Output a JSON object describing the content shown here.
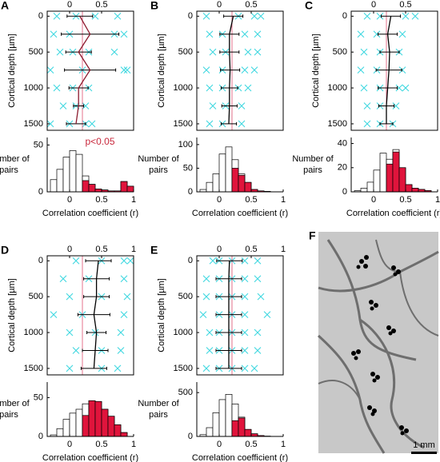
{
  "chart_data": [
    {
      "type": "depth",
      "label": "A",
      "ylabel": "Cortical depth [µm]",
      "xlim": [
        -0.35,
        1
      ],
      "ylim": [
        -70,
        1590
      ],
      "y_inverted": true,
      "xticks": [
        0,
        0.5
      ],
      "yticks": [
        0,
        500,
        1000,
        1500
      ],
      "threshold": 0.2,
      "threshold_color": "#e05070",
      "point_color": "#40d8e0",
      "depths": [
        0,
        250,
        500,
        750,
        1000,
        1250,
        1500
      ],
      "mean": [
        0.16,
        0.32,
        0.14,
        0.32,
        0.14,
        0.14,
        0.1
      ],
      "error": [
        0.2,
        0.45,
        0.2,
        0.4,
        0.15,
        0.08,
        0.15
      ],
      "points": [
        [
          -0.2,
          0
        ],
        [
          0.1,
          0
        ],
        [
          0.4,
          0
        ],
        [
          0.75,
          0
        ],
        [
          -0.25,
          250
        ],
        [
          0,
          250
        ],
        [
          0.7,
          250
        ],
        [
          0.85,
          250
        ],
        [
          -0.15,
          500
        ],
        [
          0.05,
          500
        ],
        [
          0.3,
          500
        ],
        [
          0.7,
          500
        ],
        [
          -0.3,
          750
        ],
        [
          0.2,
          750
        ],
        [
          0.85,
          750
        ],
        [
          0.9,
          750
        ],
        [
          -0.2,
          1000
        ],
        [
          0.05,
          1000
        ],
        [
          0.3,
          1000
        ],
        [
          -0.1,
          1250
        ],
        [
          0.1,
          1250
        ],
        [
          0.25,
          1250
        ],
        [
          -0.3,
          1500
        ],
        [
          0,
          1500
        ],
        [
          0.25,
          1500
        ],
        [
          0.35,
          1500
        ]
      ]
    },
    {
      "type": "histogram",
      "xlabel": "Correlation coefficient (r)",
      "ylabel_lines": [
        "Number of",
        "pairs"
      ],
      "xlim": [
        -0.35,
        1
      ],
      "ylim": [
        0,
        58
      ],
      "xticks": [
        0,
        0.5,
        1
      ],
      "yticks": [
        0,
        50
      ],
      "annotation": "p<0.05",
      "annotation_color": "#c8283c",
      "threshold": 0.2,
      "bins": [
        -0.3,
        -0.2,
        -0.1,
        0,
        0.1,
        0.2,
        0.3,
        0.4,
        0.5,
        0.6,
        0.7,
        0.8,
        0.9,
        1
      ],
      "series": [
        {
          "color": "#ffffff",
          "values": [
            13,
            24,
            37,
            44,
            40,
            17,
            8,
            3,
            2,
            1,
            1,
            11,
            6
          ]
        },
        {
          "color": "#e0143c",
          "values": [
            0,
            0,
            0,
            0,
            0,
            12,
            8,
            3,
            2,
            1,
            1,
            11,
            6
          ]
        }
      ]
    },
    {
      "type": "depth",
      "label": "B",
      "ylabel": "Cortical depth [µm]",
      "xlim": [
        -0.35,
        1
      ],
      "ylim": [
        -70,
        1590
      ],
      "y_inverted": true,
      "xticks": [
        0,
        0.5
      ],
      "yticks": [
        0,
        500,
        1000,
        1500
      ],
      "threshold": 0.2,
      "threshold_color": "#e05070",
      "point_color": "#40d8e0",
      "depths": [
        0,
        250,
        500,
        750,
        1000,
        1250,
        1500
      ],
      "mean": [
        0.22,
        0.16,
        0.16,
        0.17,
        0.16,
        0.16,
        0.15
      ],
      "error": [
        0.15,
        0.15,
        0.15,
        0.15,
        0.13,
        0.12,
        0.12
      ],
      "points": [
        [
          -0.2,
          0
        ],
        [
          0.3,
          0
        ],
        [
          0.55,
          0
        ],
        [
          0.65,
          0
        ],
        [
          -0.15,
          250
        ],
        [
          0.05,
          250
        ],
        [
          0.4,
          250
        ],
        [
          0.6,
          250
        ],
        [
          -0.1,
          500
        ],
        [
          0.1,
          500
        ],
        [
          0.45,
          500
        ],
        [
          0.6,
          500
        ],
        [
          -0.2,
          750
        ],
        [
          0.05,
          750
        ],
        [
          0.4,
          750
        ],
        [
          0.55,
          750
        ],
        [
          -0.15,
          1000
        ],
        [
          0.05,
          1000
        ],
        [
          0.3,
          1000
        ],
        [
          0.45,
          1000
        ],
        [
          -0.1,
          1250
        ],
        [
          0.1,
          1250
        ],
        [
          0.35,
          1250
        ],
        [
          -0.15,
          1500
        ],
        [
          0.05,
          1500
        ],
        [
          0.35,
          1500
        ]
      ]
    },
    {
      "type": "histogram",
      "xlabel": "Correlation coefficient (r)",
      "ylabel_lines": [
        "Number of",
        "pairs"
      ],
      "xlim": [
        -0.35,
        1
      ],
      "ylim": [
        0,
        115
      ],
      "xticks": [
        0,
        0.5,
        1
      ],
      "yticks": [
        0,
        50,
        100
      ],
      "threshold": 0.2,
      "bins": [
        -0.3,
        -0.2,
        -0.1,
        0,
        0.1,
        0.2,
        0.3,
        0.4,
        0.5,
        0.6,
        0.7,
        0.8,
        0.9,
        1
      ],
      "series": [
        {
          "color": "#ffffff",
          "values": [
            5,
            20,
            38,
            80,
            95,
            68,
            38,
            20,
            5,
            2,
            1,
            0,
            0
          ]
        },
        {
          "color": "#e0143c",
          "values": [
            0,
            0,
            0,
            0,
            0,
            50,
            35,
            20,
            5,
            2,
            1,
            0,
            0
          ]
        }
      ]
    },
    {
      "type": "depth",
      "label": "C",
      "ylabel": "Cortical depth [µm]",
      "xlim": [
        -0.35,
        1
      ],
      "ylim": [
        -70,
        1590
      ],
      "y_inverted": true,
      "xticks": [
        0,
        0.5
      ],
      "yticks": [
        0,
        500,
        1000,
        1500
      ],
      "threshold": 0.2,
      "threshold_color": "#e05070",
      "point_color": "#40d8e0",
      "depths": [
        0,
        250,
        500,
        750,
        1000,
        1250,
        1500
      ],
      "mean": [
        0.27,
        0.22,
        0.25,
        0.24,
        0.22,
        0.2,
        0.2
      ],
      "error": [
        0.15,
        0.15,
        0.15,
        0.2,
        0.15,
        0.12,
        0.1
      ],
      "points": [
        [
          -0.1,
          0
        ],
        [
          0.1,
          0
        ],
        [
          0.5,
          0
        ],
        [
          0.65,
          0
        ],
        [
          -0.2,
          250
        ],
        [
          0.05,
          250
        ],
        [
          0.45,
          250
        ],
        [
          -0.15,
          500
        ],
        [
          0.1,
          500
        ],
        [
          0.4,
          500
        ],
        [
          -0.2,
          750
        ],
        [
          0.05,
          750
        ],
        [
          0.45,
          750
        ],
        [
          -0.15,
          1000
        ],
        [
          0.1,
          1000
        ],
        [
          0.4,
          1000
        ],
        [
          0.5,
          1000
        ],
        [
          -0.1,
          1250
        ],
        [
          0.1,
          1250
        ],
        [
          0.35,
          1250
        ],
        [
          -0.1,
          1500
        ],
        [
          0.1,
          1500
        ],
        [
          0.3,
          1500
        ]
      ]
    },
    {
      "type": "histogram",
      "xlabel": "Correlation coefficient (r)",
      "ylabel_lines": [
        "Number of",
        "pairs"
      ],
      "xlim": [
        -0.35,
        1
      ],
      "ylim": [
        0,
        45
      ],
      "xticks": [
        0,
        0.5,
        1
      ],
      "yticks": [
        0,
        20,
        40
      ],
      "threshold": 0.2,
      "bins": [
        -0.3,
        -0.2,
        -0.1,
        0,
        0.1,
        0.2,
        0.3,
        0.4,
        0.5,
        0.6,
        0.7,
        0.8,
        0.9,
        1
      ],
      "series": [
        {
          "color": "#ffffff",
          "values": [
            1,
            3,
            8,
            18,
            32,
            27,
            35,
            20,
            6,
            3,
            2,
            1,
            0
          ]
        },
        {
          "color": "#e0143c",
          "values": [
            0,
            0,
            0,
            0,
            0,
            23,
            33,
            20,
            6,
            3,
            2,
            1,
            0
          ]
        }
      ]
    },
    {
      "type": "depth",
      "label": "D",
      "ylabel": "Cortical depth [µm]",
      "xlim": [
        -0.35,
        1
      ],
      "ylim": [
        -70,
        1590
      ],
      "y_inverted": true,
      "xticks": [
        0,
        0.5,
        1
      ],
      "yticks": [
        0,
        500,
        1000,
        1500
      ],
      "threshold": 0.2,
      "threshold_color": "#e05070",
      "point_color": "#40d8e0",
      "depths": [
        0,
        250,
        500,
        750,
        1000,
        1250,
        1500
      ],
      "mean": [
        0.45,
        0.42,
        0.42,
        0.38,
        0.42,
        0.4,
        0.38
      ],
      "error": [
        0.2,
        0.2,
        0.2,
        0.25,
        0.15,
        0.2,
        0.2
      ],
      "points": [
        [
          0.1,
          0
        ],
        [
          0.5,
          0
        ],
        [
          0.85,
          0
        ],
        [
          0.95,
          0
        ],
        [
          -0.1,
          250
        ],
        [
          0.3,
          250
        ],
        [
          0.85,
          250
        ],
        [
          0,
          500
        ],
        [
          0.5,
          500
        ],
        [
          0.9,
          500
        ],
        [
          -0.25,
          750
        ],
        [
          0.2,
          750
        ],
        [
          0.85,
          750
        ],
        [
          0,
          1000
        ],
        [
          0.4,
          1000
        ],
        [
          0.8,
          1000
        ],
        [
          0.1,
          1250
        ],
        [
          0.5,
          1250
        ],
        [
          0.8,
          1250
        ],
        [
          0,
          1500
        ],
        [
          0.5,
          1500
        ],
        [
          0.75,
          1500
        ]
      ]
    },
    {
      "type": "histogram",
      "xlabel": "Correlation coefficient (r)",
      "ylabel_lines": [
        "Number of",
        "pairs"
      ],
      "xlim": [
        -0.35,
        1
      ],
      "ylim": [
        0,
        70
      ],
      "xticks": [
        0,
        0.5,
        1
      ],
      "yticks": [
        0,
        50
      ],
      "threshold": 0.2,
      "bins": [
        -0.3,
        -0.2,
        -0.1,
        0,
        0.1,
        0.2,
        0.3,
        0.4,
        0.5,
        0.6,
        0.7,
        0.8,
        0.9,
        1
      ],
      "series": [
        {
          "color": "#ffffff",
          "values": [
            2,
            10,
            22,
            30,
            35,
            42,
            46,
            45,
            35,
            26,
            15,
            5,
            0
          ]
        },
        {
          "color": "#e0143c",
          "values": [
            0,
            0,
            0,
            0,
            0,
            27,
            46,
            45,
            35,
            26,
            15,
            5,
            0
          ]
        }
      ]
    },
    {
      "type": "depth",
      "label": "E",
      "ylabel": "Cortical depth [µm]",
      "xlim": [
        -0.35,
        1
      ],
      "ylim": [
        -70,
        1590
      ],
      "y_inverted": true,
      "xticks": [
        0,
        0.5,
        1
      ],
      "yticks": [
        0,
        500,
        1000,
        1500
      ],
      "threshold": 0.2,
      "threshold_color": "#e05070",
      "point_color": "#40d8e0",
      "depths": [
        0,
        250,
        500,
        750,
        1000,
        1250,
        1500
      ],
      "mean": [
        0.16,
        0.15,
        0.15,
        0.15,
        0.15,
        0.15,
        0.15
      ],
      "error": [
        0.2,
        0.2,
        0.2,
        0.2,
        0.2,
        0.2,
        0.2
      ],
      "points": [
        [
          -0.1,
          0
        ],
        [
          0,
          0
        ],
        [
          0.2,
          0
        ],
        [
          0.4,
          0
        ],
        [
          0.6,
          0
        ],
        [
          -0.2,
          250
        ],
        [
          0,
          250
        ],
        [
          0.2,
          250
        ],
        [
          0.4,
          250
        ],
        [
          0.6,
          250
        ],
        [
          -0.2,
          500
        ],
        [
          0,
          500
        ],
        [
          0.2,
          500
        ],
        [
          0.4,
          500
        ],
        [
          0.65,
          500
        ],
        [
          -0.25,
          750
        ],
        [
          0,
          750
        ],
        [
          0.2,
          750
        ],
        [
          0.4,
          750
        ],
        [
          0.75,
          750
        ],
        [
          -0.15,
          1000
        ],
        [
          0,
          1000
        ],
        [
          0.2,
          1000
        ],
        [
          0.4,
          1000
        ],
        [
          0.6,
          1000
        ],
        [
          -0.15,
          1250
        ],
        [
          0,
          1250
        ],
        [
          0.2,
          1250
        ],
        [
          0.4,
          1250
        ],
        [
          0.6,
          1250
        ],
        [
          -0.2,
          1500
        ],
        [
          0,
          1500
        ],
        [
          0.2,
          1500
        ],
        [
          0.4,
          1500
        ],
        [
          0.55,
          1500
        ]
      ]
    },
    {
      "type": "histogram",
      "xlabel": "Correlation coefficient (r)",
      "ylabel_lines": [
        "Number of",
        "pairs"
      ],
      "xlim": [
        -0.35,
        1
      ],
      "ylim": [
        0,
        620
      ],
      "xticks": [
        0,
        0.5,
        1
      ],
      "yticks": [
        0,
        500
      ],
      "threshold": 0.2,
      "bins": [
        -0.3,
        -0.2,
        -0.1,
        0,
        0.1,
        0.2,
        0.3,
        0.4,
        0.5,
        0.6,
        0.7,
        0.8,
        0.9,
        1
      ],
      "series": [
        {
          "color": "#ffffff",
          "values": [
            20,
            100,
            270,
            420,
            480,
            370,
            220,
            80,
            30,
            10,
            3,
            0,
            0
          ]
        },
        {
          "color": "#e0143c",
          "values": [
            0,
            0,
            0,
            0,
            0,
            180,
            210,
            80,
            30,
            10,
            3,
            0,
            0
          ]
        }
      ]
    }
  ],
  "image_panel": {
    "label": "F",
    "scale_bar": "1 mm"
  }
}
